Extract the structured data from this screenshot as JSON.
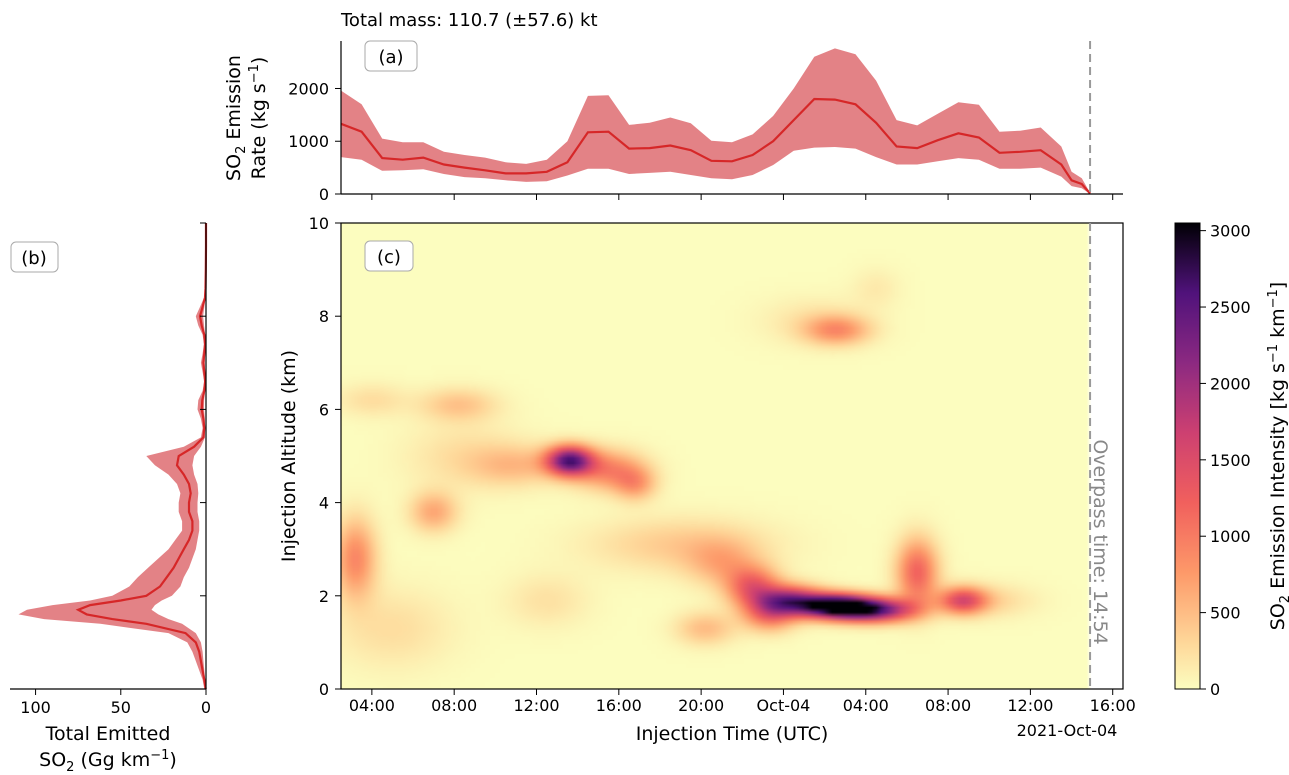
{
  "figure": {
    "total_mass_text": "Total mass: 110.7 (±57.6) kt",
    "panel_a_tag": "(a)",
    "panel_b_tag": "(b)",
    "panel_c_tag": "(c)",
    "overpass_text": "Overpass time: 14:54",
    "date_offset_label": "2021-Oct-04"
  },
  "chart_data": [
    {
      "id": "a",
      "type": "area",
      "title": "",
      "xlabel": "",
      "ylabel_line1": "SO",
      "ylabel_line1_sub": "2",
      "ylabel_line1_rest": " Emission",
      "ylabel_line2": "Rate (kg s",
      "ylabel_line2_sup": "−1",
      "ylabel_line2_rest": ")",
      "xlim_hours": [
        2.5,
        40.5
      ],
      "ylim": [
        0,
        2900
      ],
      "yticks": [
        0,
        1000,
        2000
      ],
      "overpass_hour": 38.9,
      "series": [
        {
          "name": "mean",
          "x_hours": [
            2.5,
            3.5,
            4.5,
            5.5,
            6.5,
            7.5,
            8.5,
            9.5,
            10.5,
            11.5,
            12.5,
            13.5,
            14.5,
            15.5,
            16.5,
            17.5,
            18.5,
            19.5,
            20.5,
            21.5,
            22.5,
            23.5,
            24.5,
            25.5,
            26.5,
            27.5,
            28.5,
            29.5,
            30.5,
            31.5,
            32.5,
            33.5,
            34.5,
            35.5,
            36.5,
            37.5,
            38.0,
            38.5,
            38.9
          ],
          "mean": [
            1330,
            1180,
            680,
            650,
            690,
            560,
            500,
            450,
            390,
            390,
            420,
            600,
            1170,
            1180,
            860,
            870,
            920,
            830,
            630,
            620,
            740,
            1000,
            1400,
            1800,
            1790,
            1700,
            1350,
            900,
            870,
            1020,
            1150,
            1070,
            780,
            800,
            830,
            560,
            260,
            190,
            10
          ],
          "upper": [
            1960,
            1700,
            1050,
            980,
            980,
            800,
            740,
            690,
            600,
            570,
            650,
            1000,
            1860,
            1870,
            1310,
            1350,
            1450,
            1340,
            1010,
            980,
            1130,
            1480,
            2000,
            2600,
            2760,
            2650,
            2150,
            1400,
            1300,
            1520,
            1740,
            1690,
            1180,
            1200,
            1260,
            900,
            420,
            300,
            20
          ],
          "lower": [
            700,
            650,
            440,
            450,
            470,
            380,
            320,
            300,
            260,
            230,
            240,
            350,
            480,
            480,
            380,
            400,
            420,
            360,
            300,
            280,
            360,
            550,
            820,
            880,
            890,
            860,
            700,
            560,
            560,
            620,
            680,
            650,
            480,
            480,
            500,
            330,
            150,
            110,
            0
          ]
        }
      ]
    },
    {
      "id": "b",
      "type": "area",
      "title": "",
      "xlabel_line1": "Total Emitted",
      "xlabel_line2": "SO",
      "xlabel_line2_sub": "2",
      "xlabel_line2_rest": " (Gg km",
      "xlabel_line2_sup": "−1",
      "xlabel_line2_end": ")",
      "xlim_reversed": [
        115,
        0
      ],
      "xticks": [
        100,
        50,
        0
      ],
      "ylim": [
        0,
        10
      ],
      "altitude_km": [
        0,
        0.2,
        0.4,
        0.6,
        0.8,
        1.0,
        1.2,
        1.4,
        1.5,
        1.6,
        1.7,
        1.8,
        1.9,
        2.0,
        2.2,
        2.4,
        2.6,
        2.8,
        3.0,
        3.2,
        3.4,
        3.6,
        3.8,
        4.0,
        4.2,
        4.4,
        4.6,
        4.8,
        5.0,
        5.2,
        5.4,
        5.6,
        5.8,
        6.0,
        6.2,
        6.4,
        6.6,
        6.8,
        7.0,
        7.2,
        7.4,
        7.6,
        7.8,
        8.0,
        8.2,
        8.4,
        8.6,
        9.0,
        9.5,
        10.0
      ],
      "mean": [
        0.2,
        1,
        2,
        3,
        4,
        6,
        12,
        35,
        55,
        70,
        75,
        68,
        50,
        35,
        27,
        23,
        19,
        16,
        13,
        10,
        8,
        8,
        10,
        10,
        9,
        10,
        13,
        17,
        16,
        7,
        1.5,
        1,
        1.5,
        2.5,
        2.2,
        1,
        0.5,
        1,
        1.5,
        1,
        0.6,
        1,
        2.5,
        3.5,
        2,
        0.6,
        0.3,
        0.1,
        0,
        0
      ],
      "upper": [
        1,
        2,
        4,
        6,
        8,
        11,
        22,
        62,
        95,
        110,
        105,
        90,
        68,
        55,
        45,
        40,
        34,
        28,
        22,
        18,
        14,
        14,
        16,
        16,
        15,
        17,
        22,
        30,
        35,
        13,
        3,
        2,
        3,
        5,
        4.5,
        2,
        1,
        2,
        3,
        2,
        1.2,
        2,
        4.5,
        6,
        3.5,
        1.2,
        0.6,
        0.2,
        0,
        0
      ],
      "lower": [
        0,
        0.5,
        1,
        1.5,
        2,
        3,
        6,
        14,
        22,
        28,
        32,
        30,
        26,
        20,
        15,
        13,
        10,
        8,
        6,
        5,
        4,
        4,
        5,
        5,
        4.5,
        5,
        7,
        8,
        7,
        3,
        0.6,
        0.5,
        0.7,
        1.2,
        1.1,
        0.5,
        0.2,
        0.5,
        0.7,
        0.5,
        0.3,
        0.5,
        1.2,
        1.7,
        1,
        0.3,
        0.1,
        0,
        0,
        0
      ]
    },
    {
      "id": "c",
      "type": "heatmap",
      "title": "",
      "xlabel": "Injection Time (UTC)",
      "ylabel": "Injection Altitude (km)",
      "xlim_hours": [
        2.5,
        40.5
      ],
      "xticks_hours": [
        4,
        8,
        12,
        16,
        20,
        24,
        28,
        32,
        36,
        40
      ],
      "xtick_labels": [
        "04:00",
        "08:00",
        "12:00",
        "16:00",
        "20:00",
        "Oct-04",
        "04:00",
        "08:00",
        "12:00",
        "16:00"
      ],
      "ylim": [
        0,
        10
      ],
      "yticks": [
        0,
        2,
        4,
        6,
        8,
        10
      ],
      "colormap": "magma_r",
      "clim": [
        0,
        3050
      ],
      "hotspots": [
        {
          "t": 3.2,
          "z": 2.8,
          "st": 0.7,
          "sz": 0.6,
          "v": 900
        },
        {
          "t": 4.0,
          "z": 6.2,
          "st": 1.2,
          "sz": 0.25,
          "v": 250
        },
        {
          "t": 7.0,
          "z": 3.8,
          "st": 0.8,
          "sz": 0.3,
          "v": 650
        },
        {
          "t": 8.2,
          "z": 6.1,
          "st": 1.3,
          "sz": 0.25,
          "v": 450
        },
        {
          "t": 11.0,
          "z": 4.8,
          "st": 1.5,
          "sz": 0.3,
          "v": 450
        },
        {
          "t": 13.6,
          "z": 4.9,
          "st": 0.8,
          "sz": 0.22,
          "v": 2400
        },
        {
          "t": 15.5,
          "z": 4.7,
          "st": 1.2,
          "sz": 0.3,
          "v": 900
        },
        {
          "t": 16.8,
          "z": 4.4,
          "st": 0.7,
          "sz": 0.25,
          "v": 650
        },
        {
          "t": 19.0,
          "z": 3.1,
          "st": 3.0,
          "sz": 0.4,
          "v": 400
        },
        {
          "t": 21.0,
          "z": 2.7,
          "st": 1.2,
          "sz": 0.35,
          "v": 500
        },
        {
          "t": 22.5,
          "z": 2.2,
          "st": 0.9,
          "sz": 0.3,
          "v": 1200
        },
        {
          "t": 23.3,
          "z": 1.6,
          "st": 0.9,
          "sz": 0.25,
          "v": 1000
        },
        {
          "t": 24.3,
          "z": 1.9,
          "st": 1.1,
          "sz": 0.22,
          "v": 1900
        },
        {
          "t": 26.5,
          "z": 1.78,
          "st": 1.2,
          "sz": 0.18,
          "v": 3000
        },
        {
          "t": 28.5,
          "z": 1.7,
          "st": 1.3,
          "sz": 0.18,
          "v": 2300
        },
        {
          "t": 30.5,
          "z": 2.5,
          "st": 0.7,
          "sz": 0.5,
          "v": 1200
        },
        {
          "t": 32.7,
          "z": 1.9,
          "st": 0.8,
          "sz": 0.2,
          "v": 1400
        },
        {
          "t": 34.0,
          "z": 1.9,
          "st": 1.5,
          "sz": 0.25,
          "v": 300
        },
        {
          "t": 26.6,
          "z": 7.7,
          "st": 1.1,
          "sz": 0.22,
          "v": 800
        },
        {
          "t": 25.5,
          "z": 7.9,
          "st": 1.8,
          "sz": 0.35,
          "v": 200
        },
        {
          "t": 5.0,
          "z": 1.3,
          "st": 2.0,
          "sz": 0.6,
          "v": 250
        },
        {
          "t": 12.5,
          "z": 1.9,
          "st": 1.4,
          "sz": 0.4,
          "v": 220
        },
        {
          "t": 8.5,
          "z": 5.0,
          "st": 2.0,
          "sz": 0.5,
          "v": 250
        },
        {
          "t": 20.2,
          "z": 1.3,
          "st": 1.0,
          "sz": 0.25,
          "v": 500
        },
        {
          "t": 28.5,
          "z": 8.6,
          "st": 0.8,
          "sz": 0.3,
          "v": 150
        }
      ]
    },
    {
      "id": "colorbar",
      "type": "colorbar",
      "label_prefix": "SO",
      "label_sub": "2",
      "label_mid": " Emission Intensity [kg s",
      "label_sup1": "−1",
      "label_mid2": " km",
      "label_sup2": "−1",
      "label_end": "]",
      "clim": [
        0,
        3050
      ],
      "ticks": [
        0,
        500,
        1000,
        1500,
        2000,
        2500,
        3000
      ],
      "tick_labels": [
        "0",
        "500",
        "1000",
        "1500",
        "2000",
        "2500",
        "3000"
      ]
    }
  ]
}
